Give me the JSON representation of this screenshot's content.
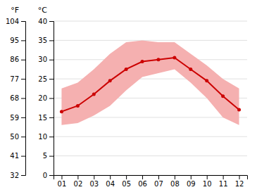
{
  "chart_data": {
    "type": "line",
    "categories": [
      "01",
      "02",
      "03",
      "04",
      "05",
      "06",
      "07",
      "08",
      "09",
      "10",
      "11",
      "12"
    ],
    "series": [
      {
        "type": "area",
        "color": "#f5b0b0",
        "lower": [
          13.0,
          13.5,
          15.5,
          18.0,
          22.0,
          25.5,
          26.5,
          27.5,
          24.0,
          20.0,
          15.0,
          13.0
        ],
        "upper": [
          22.5,
          24.0,
          27.5,
          31.5,
          34.5,
          35.0,
          34.5,
          34.5,
          31.5,
          28.5,
          25.0,
          22.5
        ]
      },
      {
        "type": "line",
        "color": "#cc0000",
        "marker": "circle",
        "values": [
          16.5,
          18.0,
          21.0,
          24.5,
          27.5,
          29.5,
          30.0,
          30.5,
          27.5,
          24.5,
          20.5,
          17.0
        ]
      }
    ],
    "ylim": [
      0,
      40
    ],
    "yticks": [
      0,
      5,
      10,
      15,
      20,
      25,
      30,
      35,
      40
    ],
    "y_label": "°C",
    "y2lim": [
      32,
      104
    ],
    "y2ticks": [
      32,
      41,
      50,
      59,
      68,
      77,
      86,
      95,
      104
    ],
    "y2_label": "°F",
    "grid": true
  }
}
